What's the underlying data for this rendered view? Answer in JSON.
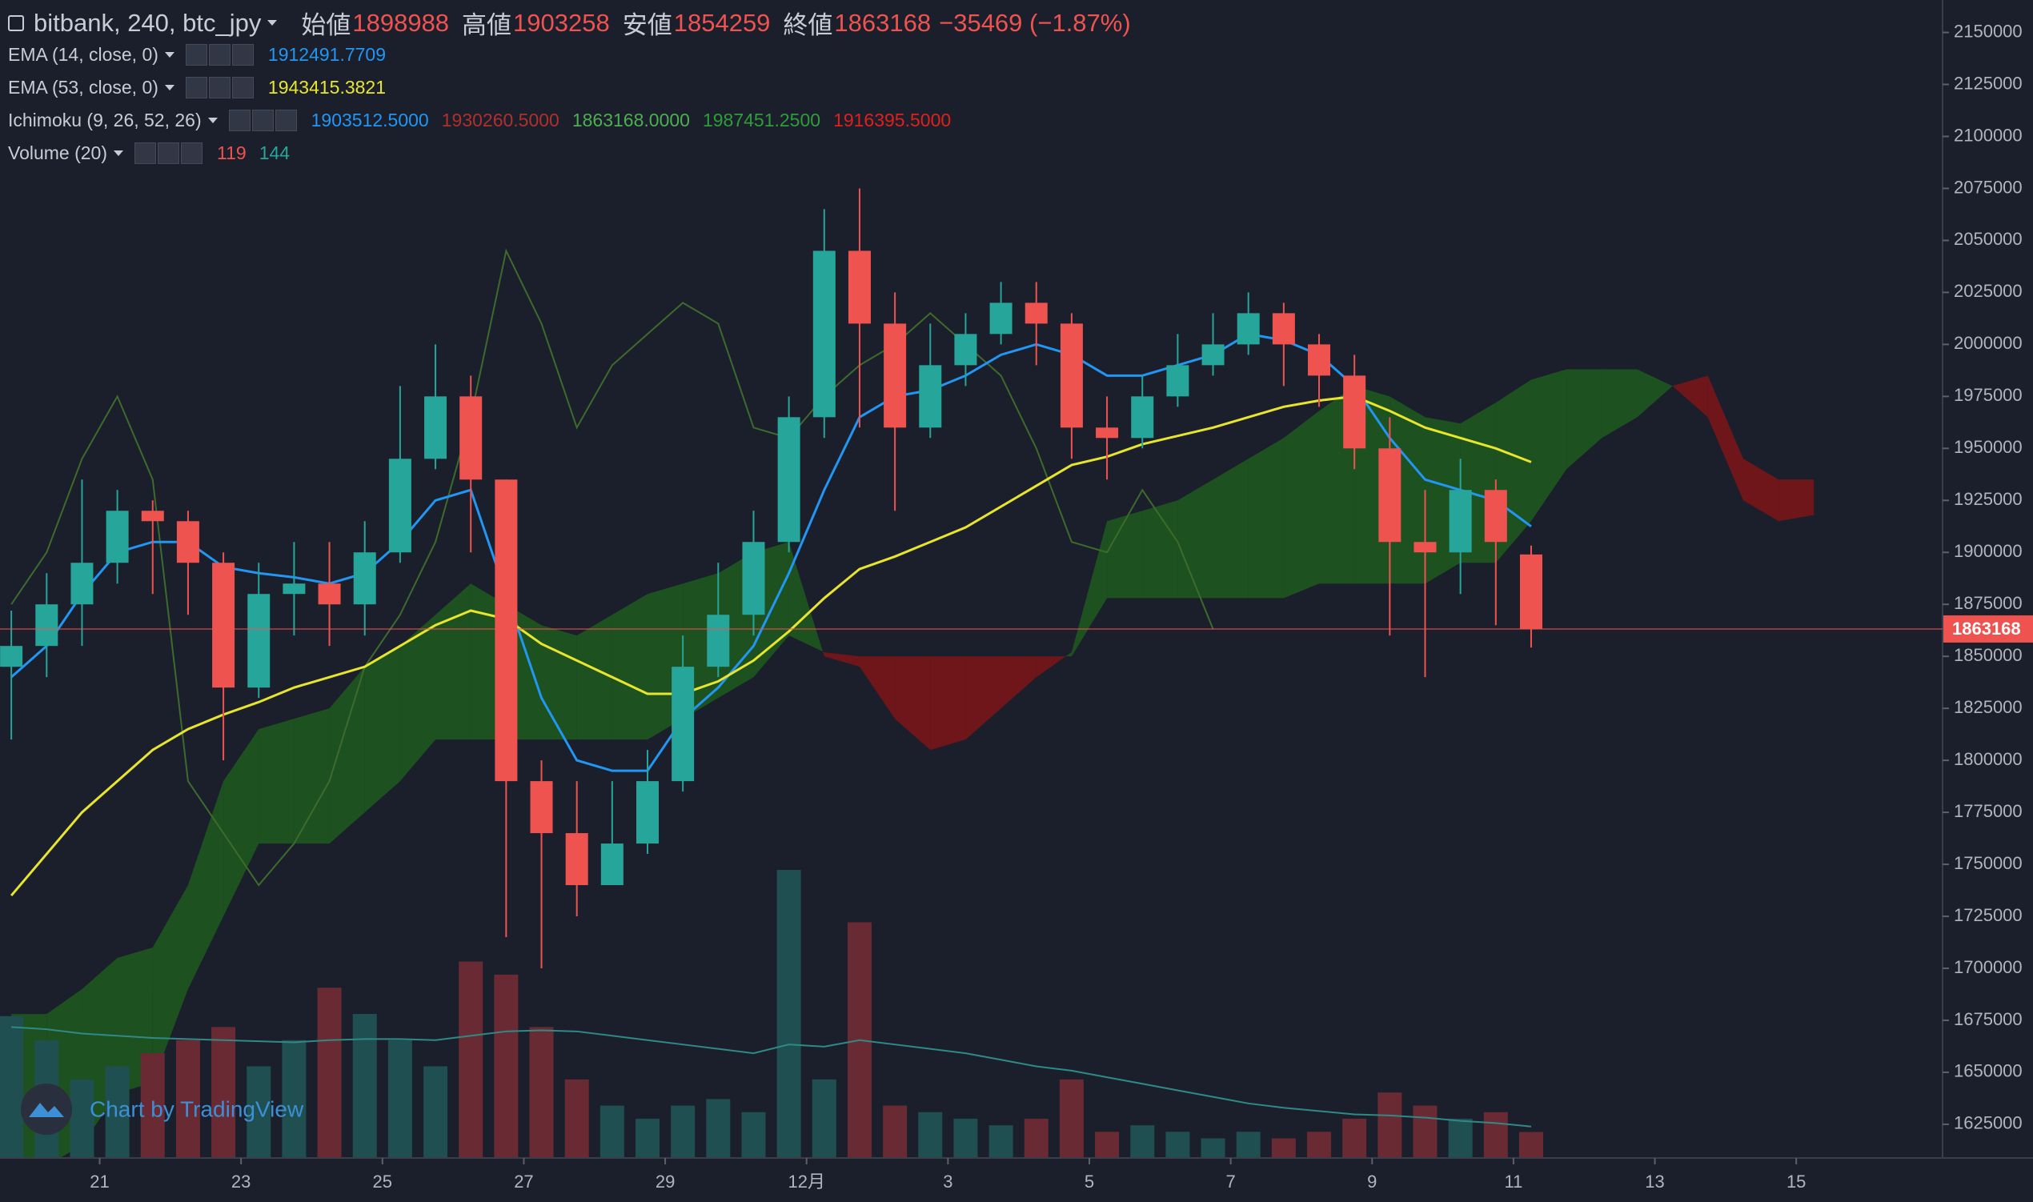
{
  "chart_data": {
    "type": "candlestick",
    "title": "bitbank, 240, btc_jpy",
    "ohlc_labels": [
      "始値",
      "高値",
      "安値",
      "終値"
    ],
    "change": "−35469 (−1.87%)",
    "x": [
      19.75,
      20.25,
      20.75,
      21.25,
      21.75,
      22.25,
      22.75,
      23.25,
      23.75,
      24.25,
      24.75,
      25.25,
      25.75,
      26.25,
      26.75,
      27.25,
      27.75,
      28.25,
      28.75,
      29.25,
      29.75,
      30.25,
      30.75,
      31.25,
      31.75,
      32.25,
      32.75,
      33.25,
      33.75,
      34.25,
      34.75,
      35.25,
      35.75,
      36.25,
      36.75,
      37.25,
      37.75,
      38.25,
      38.75,
      39.25,
      39.75,
      40.25,
      40.75,
      41.25
    ],
    "open": [
      1845000,
      1855000,
      1875000,
      1895000,
      1920000,
      1915000,
      1895000,
      1835000,
      1880000,
      1885000,
      1875000,
      1900000,
      1945000,
      1975000,
      1935000,
      1790000,
      1765000,
      1740000,
      1760000,
      1790000,
      1845000,
      1870000,
      1905000,
      1965000,
      2045000,
      2010000,
      1960000,
      1990000,
      2005000,
      2020000,
      2010000,
      1960000,
      1955000,
      1975000,
      1990000,
      2000000,
      2015000,
      2000000,
      1985000,
      1950000,
      1905000,
      1900000,
      1930000,
      1898988
    ],
    "high": [
      1872000,
      1890000,
      1935000,
      1930000,
      1925000,
      1920000,
      1900000,
      1895000,
      1905000,
      1905000,
      1915000,
      1980000,
      2000000,
      1985000,
      1935000,
      1800000,
      1790000,
      1790000,
      1805000,
      1860000,
      1895000,
      1920000,
      1975000,
      2065000,
      2075000,
      2025000,
      2010000,
      2015000,
      2030000,
      2030000,
      2015000,
      1975000,
      1985000,
      2005000,
      2015000,
      2025000,
      2020000,
      2005000,
      1995000,
      1965000,
      1930000,
      1945000,
      1935000,
      1903258
    ],
    "low": [
      1810000,
      1840000,
      1855000,
      1885000,
      1880000,
      1870000,
      1800000,
      1830000,
      1860000,
      1855000,
      1860000,
      1895000,
      1940000,
      1900000,
      1715000,
      1700000,
      1725000,
      1740000,
      1755000,
      1785000,
      1840000,
      1860000,
      1900000,
      1955000,
      1960000,
      1920000,
      1955000,
      1980000,
      2000000,
      1990000,
      1945000,
      1935000,
      1950000,
      1970000,
      1985000,
      1995000,
      1980000,
      1970000,
      1940000,
      1860000,
      1840000,
      1880000,
      1865000,
      1854259
    ],
    "close": [
      1855000,
      1875000,
      1895000,
      1920000,
      1915000,
      1895000,
      1835000,
      1880000,
      1885000,
      1875000,
      1900000,
      1945000,
      1975000,
      1935000,
      1790000,
      1765000,
      1740000,
      1760000,
      1790000,
      1845000,
      1870000,
      1905000,
      1965000,
      2045000,
      2010000,
      1960000,
      1990000,
      2005000,
      2020000,
      2010000,
      1960000,
      1955000,
      1975000,
      1990000,
      2000000,
      2015000,
      2000000,
      1985000,
      1950000,
      1905000,
      1900000,
      1930000,
      1905000,
      1863168
    ],
    "up_color": "#26a69a",
    "down_color": "#ef5350",
    "series": [
      {
        "name": "EMA (14, close, 0)",
        "color": "#2196f3",
        "values": [
          1840000,
          1855000,
          1880000,
          1900000,
          1905000,
          1905000,
          1893000,
          1890000,
          1888000,
          1885000,
          1890000,
          1905000,
          1925000,
          1930000,
          1880000,
          1830000,
          1800000,
          1795000,
          1795000,
          1820000,
          1835000,
          1855000,
          1890000,
          1930000,
          1965000,
          1975000,
          1978000,
          1985000,
          1995000,
          2000000,
          1995000,
          1985000,
          1985000,
          1990000,
          1995000,
          2005000,
          2002000,
          1995000,
          1980000,
          1955000,
          1935000,
          1930000,
          1925000,
          1912491.7709
        ]
      },
      {
        "name": "EMA (53, close, 0)",
        "color": "#e8e62c",
        "values": [
          1735000,
          1755000,
          1775000,
          1790000,
          1805000,
          1815000,
          1822000,
          1828000,
          1835000,
          1840000,
          1845000,
          1855000,
          1865000,
          1872000,
          1868000,
          1856000,
          1848000,
          1840000,
          1832000,
          1832000,
          1838000,
          1848000,
          1862000,
          1878000,
          1892000,
          1898000,
          1905000,
          1912000,
          1922000,
          1932000,
          1942000,
          1946000,
          1952000,
          1956000,
          1960000,
          1965000,
          1970000,
          1973000,
          1975000,
          1968000,
          1960000,
          1955000,
          1950000,
          1943415.3821
        ]
      }
    ],
    "ichimoku": {
      "name": "Ichimoku (9, 26, 52, 26)",
      "value_labels": [
        "1903512.5000",
        "1930260.5000",
        "1863168.0000",
        "1987451.2500",
        "1916395.5000"
      ],
      "label_colors": [
        "#2196f3",
        "#b0302c",
        "#4caf50",
        "#2e9d3a",
        "#e0201b"
      ],
      "x": [
        19.75,
        20.25,
        20.75,
        21.25,
        21.75,
        22.25,
        22.75,
        23.25,
        23.75,
        24.25,
        24.75,
        25.25,
        25.75,
        26.25,
        26.75,
        27.25,
        27.75,
        28.25,
        28.75,
        29.25,
        29.75,
        30.25,
        30.75,
        31.25,
        31.75,
        32.25,
        32.75,
        33.25,
        33.75,
        34.25,
        34.75,
        35.25,
        35.75,
        36.25,
        36.75,
        37.25,
        37.75,
        38.25,
        38.75,
        39.25,
        39.75,
        40.25,
        40.75,
        41.25,
        41.75,
        42.25,
        42.75,
        43.25,
        43.75,
        44.25,
        44.75,
        45.25
      ],
      "span_a": [
        1678000,
        1678000,
        1690000,
        1705000,
        1710000,
        1740000,
        1790000,
        1815000,
        1820000,
        1825000,
        1845000,
        1855000,
        1870000,
        1885000,
        1875000,
        1865000,
        1860000,
        1870000,
        1880000,
        1885000,
        1890000,
        1900000,
        1905000,
        1850000,
        1845000,
        1820000,
        1805000,
        1810000,
        1825000,
        1840000,
        1852000,
        1915000,
        1920000,
        1925000,
        1935000,
        1945000,
        1955000,
        1968000,
        1980000,
        1975000,
        1965000,
        1962000,
        1972000,
        1983000,
        1988000,
        1988000,
        1988000,
        1980000,
        1965000,
        1925000,
        1915000,
        1918000
      ],
      "span_b": [
        1605000,
        1605000,
        1615000,
        1640000,
        1645000,
        1690000,
        1725000,
        1760000,
        1760000,
        1760000,
        1775000,
        1790000,
        1810000,
        1810000,
        1810000,
        1810000,
        1810000,
        1810000,
        1810000,
        1820000,
        1830000,
        1840000,
        1860000,
        1852000,
        1850000,
        1850000,
        1850000,
        1850000,
        1850000,
        1850000,
        1850000,
        1878000,
        1878000,
        1878000,
        1878000,
        1878000,
        1878000,
        1885000,
        1885000,
        1885000,
        1885000,
        1895000,
        1895000,
        1915000,
        1940000,
        1955000,
        1965000,
        1980000,
        1985000,
        1945000,
        1935000,
        1935000
      ],
      "up_color": "#1e5a1e",
      "down_color": "#7d1518",
      "lagging_x": [
        19.75,
        20.25,
        20.75,
        21.25,
        21.75,
        22.25,
        22.75,
        23.25,
        23.75,
        24.25,
        24.75,
        25.25,
        25.75,
        26.25,
        26.75,
        27.25,
        27.75,
        28.25,
        28.75,
        29.25,
        29.75,
        30.25,
        30.75,
        31.25,
        31.75,
        32.25,
        32.75,
        33.25,
        33.75,
        34.25,
        34.75,
        35.25,
        35.75,
        36.25,
        36.75
      ],
      "lagging": [
        1875000,
        1900000,
        1945000,
        1975000,
        1935000,
        1790000,
        1765000,
        1740000,
        1760000,
        1790000,
        1845000,
        1870000,
        1905000,
        1965000,
        2045000,
        2010000,
        1960000,
        1990000,
        2005000,
        2020000,
        2010000,
        1960000,
        1955000,
        1975000,
        1990000,
        2000000,
        2015000,
        2000000,
        1985000,
        1950000,
        1905000,
        1900000,
        1930000,
        1905000,
        1863168
      ],
      "lagging_color": "#3c6b2c"
    },
    "volume": {
      "name": "Volume (20)",
      "values": [
        650,
        540,
        360,
        420,
        480,
        540,
        600,
        420,
        540,
        780,
        660,
        540,
        420,
        900,
        840,
        600,
        360,
        240,
        180,
        240,
        270,
        210,
        1320,
        360,
        1080,
        240,
        210,
        180,
        150,
        180,
        360,
        120,
        150,
        120,
        90,
        120,
        90,
        120,
        180,
        300,
        240,
        180,
        210,
        119
      ],
      "ma": [
        600,
        590,
        570,
        560,
        550,
        545,
        540,
        535,
        530,
        540,
        545,
        545,
        540,
        560,
        580,
        585,
        580,
        560,
        540,
        520,
        500,
        480,
        520,
        510,
        540,
        520,
        500,
        480,
        450,
        420,
        400,
        370,
        340,
        310,
        280,
        250,
        230,
        215,
        200,
        195,
        185,
        170,
        160,
        144
      ],
      "ma_color": "#2f8a86",
      "up_color": "#1f4f50",
      "down_color": "#6a2a33"
    },
    "xlim": [
      19.59,
      47.07
    ],
    "ylim": [
      1608800,
      2165600
    ],
    "xticks": [
      21,
      23,
      25,
      27,
      29,
      {
        "value": 31,
        "label": "12月"
      },
      {
        "value": 33,
        "label": "3"
      },
      {
        "value": 35,
        "label": "5"
      },
      {
        "value": 37,
        "label": "7"
      },
      {
        "value": 39,
        "label": "9"
      },
      {
        "value": 41,
        "label": "11"
      },
      {
        "value": 43,
        "label": "13"
      },
      {
        "value": 45,
        "label": "15"
      }
    ],
    "yticks": [
      1625000,
      1650000,
      1675000,
      1700000,
      1725000,
      1750000,
      1775000,
      1800000,
      1825000,
      1850000,
      1875000,
      1900000,
      1925000,
      1950000,
      1975000,
      2000000,
      2025000,
      2050000,
      2075000,
      2100000,
      2125000,
      2150000
    ],
    "watermark": "Chart by TradingView"
  }
}
